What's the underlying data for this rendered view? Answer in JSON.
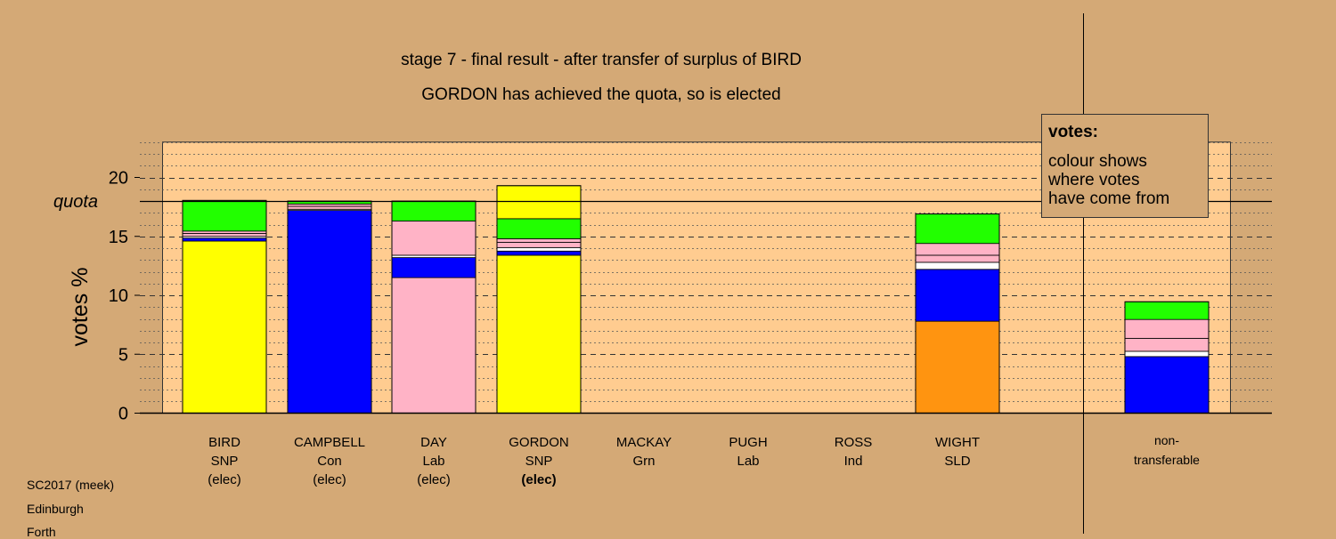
{
  "chart_data": {
    "type": "bar",
    "stacked": true,
    "title": "stage 7 - final result - after transfer of surplus of BIRD",
    "subtitle": "GORDON has achieved the quota, so is elected",
    "ylabel": "votes %",
    "ylim": [
      0,
      23
    ],
    "yticks": [
      0,
      5,
      10,
      15,
      20
    ],
    "quota": 18.0,
    "quota_label": "quota",
    "grid": true,
    "candidates": [
      {
        "name": "BIRD",
        "party": "SNP",
        "status": "(elec)",
        "status_bold": false
      },
      {
        "name": "CAMPBELL",
        "party": "Con",
        "status": "(elec)",
        "status_bold": false
      },
      {
        "name": "DAY",
        "party": "Lab",
        "status": "(elec)",
        "status_bold": false
      },
      {
        "name": "GORDON",
        "party": "SNP",
        "status": "(elec)",
        "status_bold": true
      },
      {
        "name": "MACKAY",
        "party": "Grn",
        "status": "",
        "status_bold": false
      },
      {
        "name": "PUGH",
        "party": "Lab",
        "status": "",
        "status_bold": false
      },
      {
        "name": "ROSS",
        "party": "Ind",
        "status": "",
        "status_bold": false
      },
      {
        "name": "WIGHT",
        "party": "SLD",
        "status": "",
        "status_bold": false
      }
    ],
    "nontransferable_label": [
      "non-",
      "transferable"
    ],
    "colors": {
      "SNP": "#ffff00",
      "Con": "#0000ff",
      "Lab": "#ffb3c6",
      "Grn": "#22ff00",
      "SLD": "#ff9410",
      "Ind": "#ffffff",
      "Lab2": "#ffb3c6"
    },
    "stacks": [
      [
        {
          "source": "SNP",
          "value": 14.6
        },
        {
          "source": "Con",
          "value": 0.25
        },
        {
          "source": "Ind",
          "value": 0.15
        },
        {
          "source": "Lab",
          "value": 0.25
        },
        {
          "source": "Lab2",
          "value": 0.2
        },
        {
          "source": "Grn",
          "value": 2.6
        },
        {
          "source": "SLD",
          "value": 0.0
        }
      ],
      [
        {
          "source": "Con",
          "value": 17.2
        },
        {
          "source": "Ind",
          "value": 0.1
        },
        {
          "source": "Lab",
          "value": 0.25
        },
        {
          "source": "Lab2",
          "value": 0.2
        },
        {
          "source": "Grn",
          "value": 0.25
        }
      ],
      [
        {
          "source": "Lab",
          "value": 11.5
        },
        {
          "source": "Con",
          "value": 1.7
        },
        {
          "source": "Ind",
          "value": 0.2
        },
        {
          "source": "Lab2",
          "value": 2.9
        },
        {
          "source": "Grn",
          "value": 1.7
        }
      ],
      [
        {
          "source": "SNP",
          "value": 13.4
        },
        {
          "source": "Con",
          "value": 0.35
        },
        {
          "source": "Ind",
          "value": 0.3
        },
        {
          "source": "Lab",
          "value": 0.45
        },
        {
          "source": "Lab2",
          "value": 0.3
        },
        {
          "source": "Grn",
          "value": 1.7
        },
        {
          "source": "SNP",
          "value": 2.8
        }
      ],
      [],
      [],
      [],
      [
        {
          "source": "SLD",
          "value": 7.8
        },
        {
          "source": "Con",
          "value": 4.4
        },
        {
          "source": "Ind",
          "value": 0.6
        },
        {
          "source": "Lab",
          "value": 0.6
        },
        {
          "source": "Lab2",
          "value": 1.0
        },
        {
          "source": "Grn",
          "value": 2.5
        }
      ]
    ],
    "nontransferable": [
      {
        "source": "Con",
        "value": 4.8
      },
      {
        "source": "Ind",
        "value": 0.45
      },
      {
        "source": "Lab",
        "value": 1.1
      },
      {
        "source": "Lab2",
        "value": 1.6
      },
      {
        "source": "Grn",
        "value": 1.5
      }
    ]
  },
  "legend": {
    "heading": "votes:",
    "lines": [
      "colour shows",
      "where votes",
      "have come from"
    ]
  },
  "footer": {
    "lines": [
      "SC2017 (meek)",
      "Edinburgh",
      "Forth"
    ]
  }
}
